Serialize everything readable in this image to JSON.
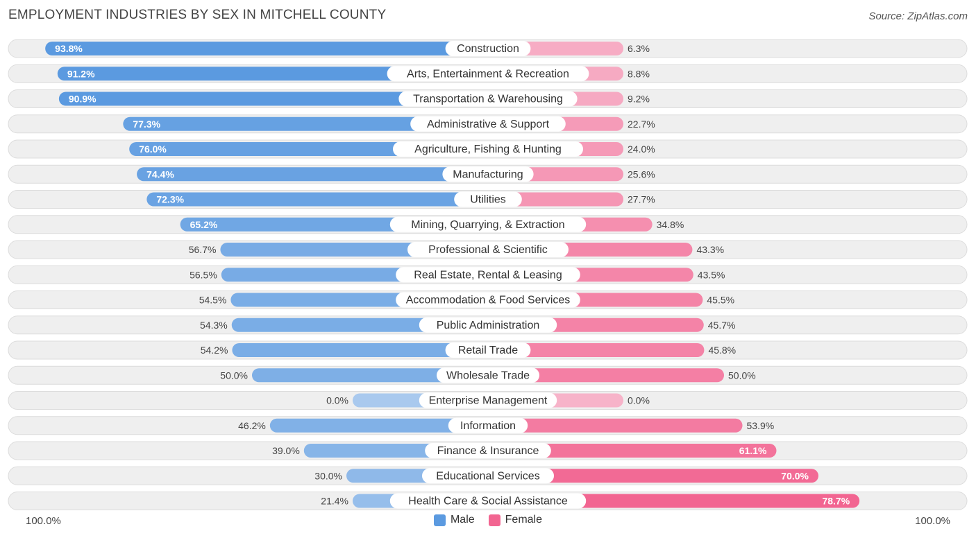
{
  "header": {
    "title": "EMPLOYMENT INDUSTRIES BY SEX IN MITCHELL COUNTY",
    "source": "Source: ZipAtlas.com"
  },
  "axis": {
    "left_label": "100.0%",
    "right_label": "100.0%"
  },
  "legend": {
    "male_label": "Male",
    "female_label": "Female"
  },
  "colors": {
    "male_strong": "#5b9ae0",
    "male_light": "#a9c9ee",
    "female_strong": "#f26591",
    "female_light": "#f7b3c9",
    "row_bg": "#efefef",
    "row_border": "#dcdcdc"
  },
  "chart_data": {
    "type": "bar",
    "orientation": "horizontal-diverging",
    "title": "EMPLOYMENT INDUSTRIES BY SEX IN MITCHELL COUNTY",
    "xlim": [
      -100,
      100
    ],
    "categories": [
      "Construction",
      "Arts, Entertainment & Recreation",
      "Transportation & Warehousing",
      "Administrative & Support",
      "Agriculture, Fishing & Hunting",
      "Manufacturing",
      "Utilities",
      "Mining, Quarrying, & Extraction",
      "Professional & Scientific",
      "Real Estate, Rental & Leasing",
      "Accommodation & Food Services",
      "Public Administration",
      "Retail Trade",
      "Wholesale Trade",
      "Enterprise Management",
      "Information",
      "Finance & Insurance",
      "Educational Services",
      "Health Care & Social Assistance"
    ],
    "series": [
      {
        "name": "Male",
        "values": [
          93.8,
          91.2,
          90.9,
          77.3,
          76.0,
          74.4,
          72.3,
          65.2,
          56.7,
          56.5,
          54.5,
          54.3,
          54.2,
          50.0,
          0.0,
          46.2,
          39.0,
          30.0,
          21.4
        ],
        "labels": [
          "93.8%",
          "91.2%",
          "90.9%",
          "77.3%",
          "76.0%",
          "74.4%",
          "72.3%",
          "65.2%",
          "56.7%",
          "56.5%",
          "54.5%",
          "54.3%",
          "54.2%",
          "50.0%",
          "0.0%",
          "46.2%",
          "39.0%",
          "30.0%",
          "21.4%"
        ]
      },
      {
        "name": "Female",
        "values": [
          6.3,
          8.8,
          9.2,
          22.7,
          24.0,
          25.6,
          27.7,
          34.8,
          43.3,
          43.5,
          45.5,
          45.7,
          45.8,
          50.0,
          0.0,
          53.9,
          61.1,
          70.0,
          78.7
        ],
        "labels": [
          "6.3%",
          "8.8%",
          "9.2%",
          "22.7%",
          "24.0%",
          "25.6%",
          "27.7%",
          "34.8%",
          "43.3%",
          "43.5%",
          "45.5%",
          "45.7%",
          "45.8%",
          "50.0%",
          "0.0%",
          "53.9%",
          "61.1%",
          "70.0%",
          "78.7%"
        ]
      }
    ]
  }
}
